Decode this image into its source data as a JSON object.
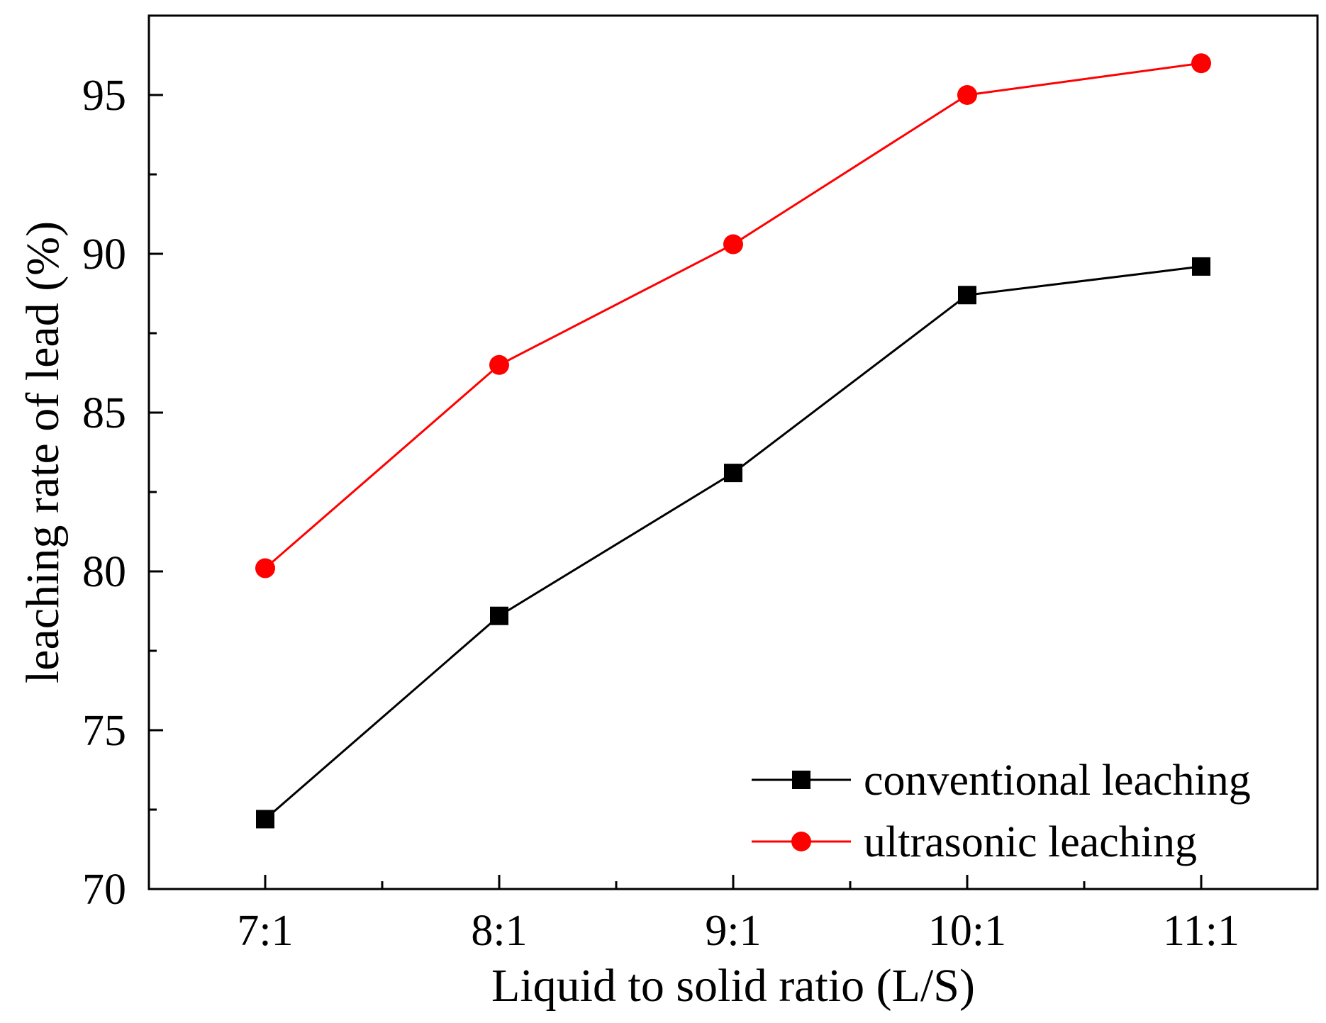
{
  "chart_data": {
    "type": "line",
    "title": "",
    "xlabel": "Liquid to solid ratio (L/S)",
    "ylabel": "leaching rate of lead (%)",
    "categories": [
      "7:1",
      "8:1",
      "9:1",
      "10:1",
      "11:1"
    ],
    "ylim": [
      70,
      97.5
    ],
    "yticks": [
      70,
      75,
      80,
      85,
      90,
      95
    ],
    "ytick_labels": [
      "70",
      "75",
      "80",
      "85",
      "90",
      "95"
    ],
    "grid": false,
    "legend_position": "bottom-right",
    "series": [
      {
        "name": "conventional leaching",
        "values": [
          72.2,
          78.6,
          83.1,
          88.7,
          89.6
        ],
        "color": "#000000",
        "marker": "square"
      },
      {
        "name": "ultrasonic leaching",
        "values": [
          80.1,
          86.5,
          90.3,
          95.0,
          96.0
        ],
        "color": "#ff0000",
        "marker": "circle"
      }
    ]
  }
}
